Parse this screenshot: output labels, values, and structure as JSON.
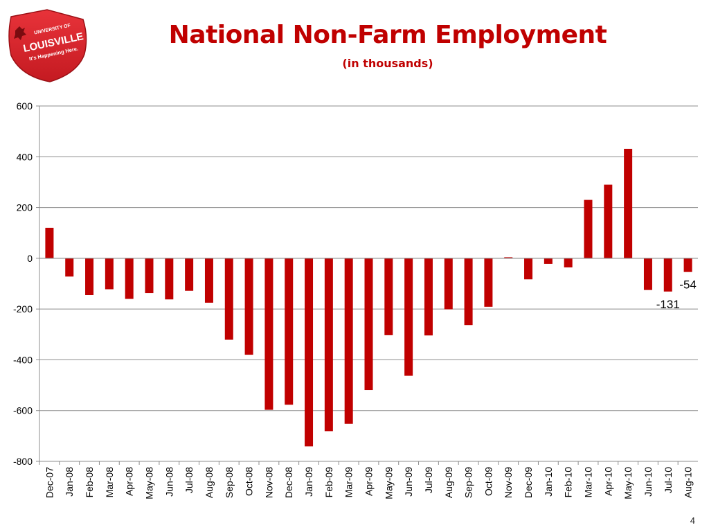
{
  "logo": {
    "line1": "UNIVERSITY OF",
    "line2": "LOUISVILLE",
    "line3": "It's Happening Here.",
    "color": "#d91f26"
  },
  "page_number": "4",
  "chart_data": {
    "type": "bar",
    "title": "National Non-Farm Employment",
    "subtitle": "(in thousands)",
    "xlabel": "",
    "ylabel": "",
    "ylim": [
      -800,
      600
    ],
    "yticks": [
      600,
      400,
      200,
      0,
      -200,
      -400,
      -600,
      -800
    ],
    "grid": true,
    "bar_color": "#c00000",
    "categories": [
      "Dec-07",
      "Jan-08",
      "Feb-08",
      "Mar-08",
      "Apr-08",
      "May-08",
      "Jun-08",
      "Jul-08",
      "Aug-08",
      "Sep-08",
      "Oct-08",
      "Nov-08",
      "Dec-08",
      "Jan-09",
      "Feb-09",
      "Mar-09",
      "Apr-09",
      "May-09",
      "Jun-09",
      "Jul-09",
      "Aug-09",
      "Sep-09",
      "Oct-09",
      "Nov-09",
      "Dec-09",
      "Jan-10",
      "Feb-10",
      "Mar-10",
      "Apr-10",
      "May-10",
      "Jun-10",
      "Jul-10",
      "Aug-10"
    ],
    "values": [
      120,
      -72,
      -145,
      -122,
      -160,
      -137,
      -162,
      -128,
      -175,
      -321,
      -380,
      -597,
      -577,
      -741,
      -681,
      -652,
      -519,
      -303,
      -463,
      -304,
      -201,
      -263,
      -191,
      4,
      -83,
      -22,
      -36,
      230,
      290,
      431,
      -125,
      -131,
      -54
    ],
    "data_labels": [
      {
        "category": "Jul-10",
        "text": "-131"
      },
      {
        "category": "Aug-10",
        "text": "-54"
      }
    ]
  }
}
